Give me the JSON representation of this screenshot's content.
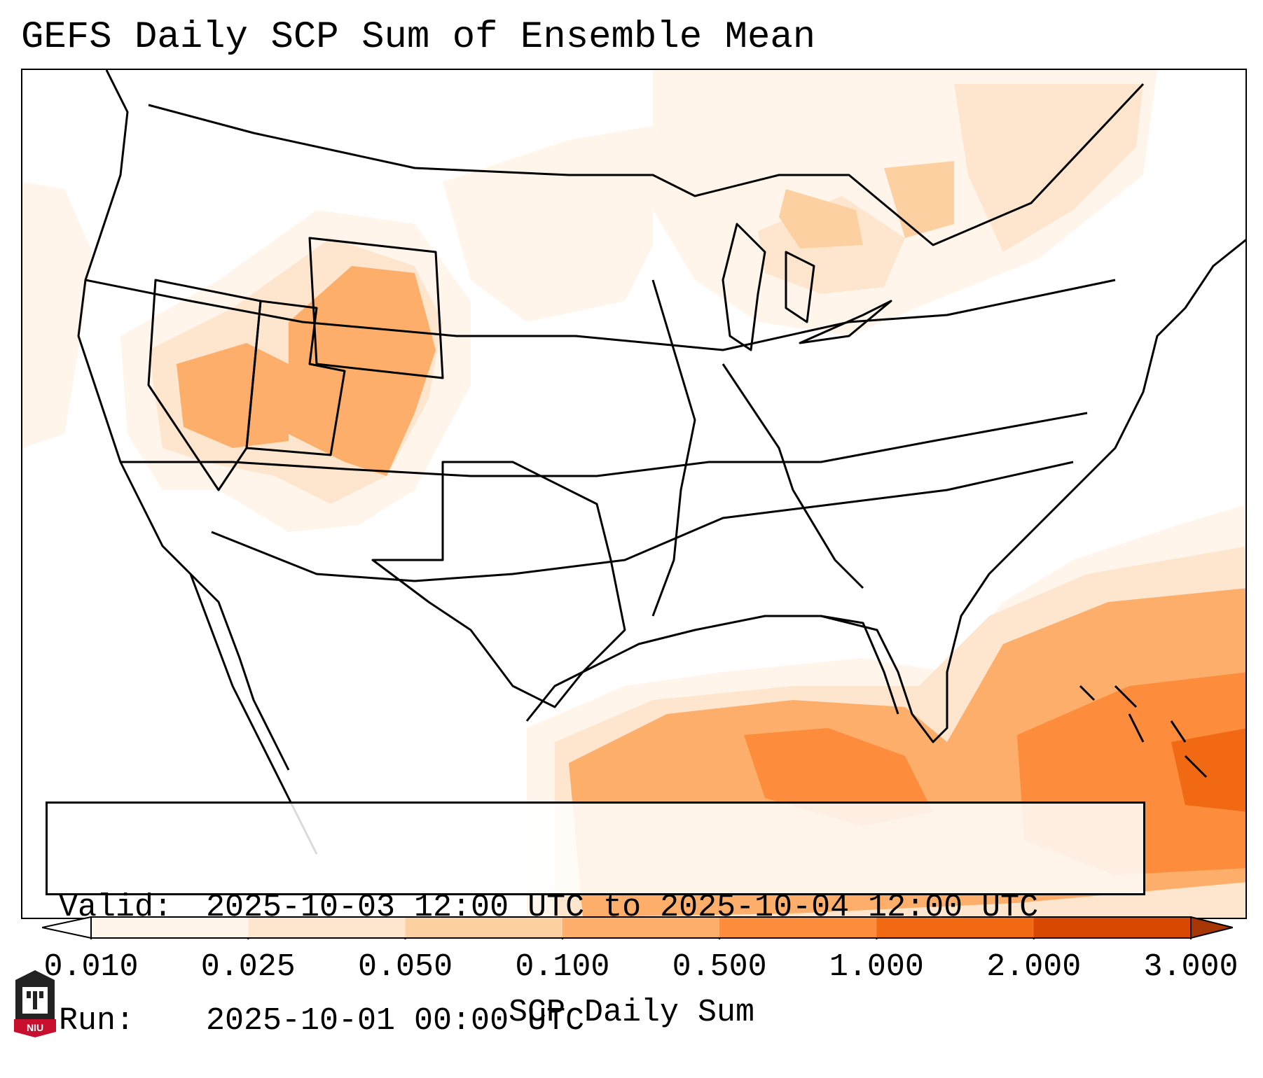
{
  "title": "GEFS Daily SCP Sum of Ensemble Mean",
  "info": {
    "valid_label": "Valid:",
    "valid_value": "2025-10-03 12:00 UTC to 2025-10-04 12:00 UTC",
    "run_label": "Run:",
    "run_value": "2025-10-01 00:00 UTC"
  },
  "colorbar": {
    "label": "SCP Daily Sum",
    "ticks": [
      "0.010",
      "0.025",
      "0.050",
      "0.100",
      "0.500",
      "1.000",
      "2.000",
      "3.000"
    ],
    "colors": [
      "#fff5eb",
      "#fee6ce",
      "#fdd0a2",
      "#fdae6b",
      "#fd8d3c",
      "#f16913",
      "#d94801",
      "#a63603"
    ]
  },
  "logo": {
    "text": "NIU",
    "color": "#c8102e"
  },
  "icons": [
    "niu-logo-icon"
  ]
}
